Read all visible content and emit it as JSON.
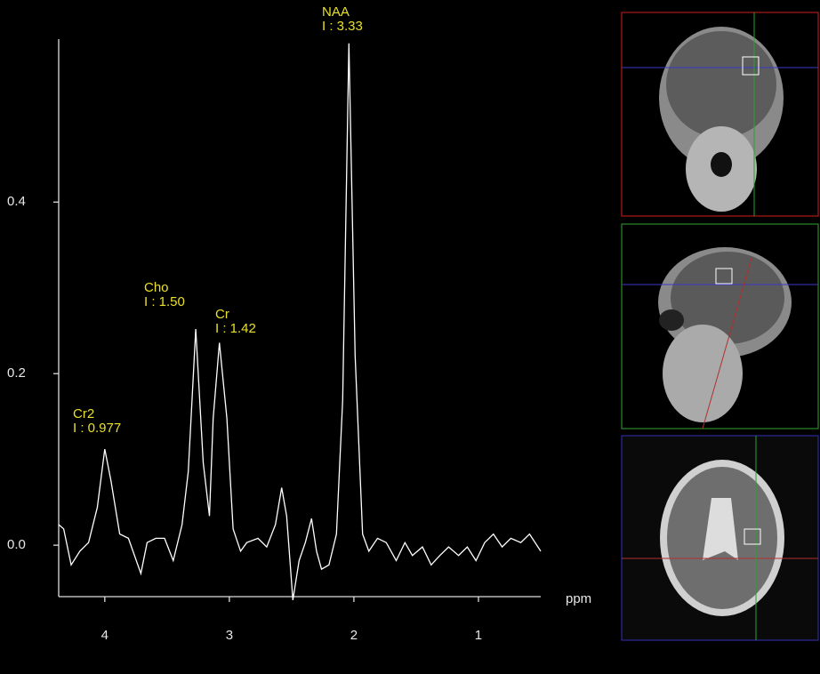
{
  "chart_data": {
    "type": "line",
    "xlabel": "ppm",
    "xlim": [
      4.37,
      0.5
    ],
    "xticks": [
      4,
      3,
      2,
      1
    ],
    "ylim": [
      -0.06,
      0.59
    ],
    "yticks": [
      {
        "value": 0,
        "label": "0.0"
      },
      0.2,
      0.4
    ],
    "series": [
      {
        "color": "#ffffff",
        "x": [
          4.37,
          4.33,
          4.27,
          4.2,
          4.13,
          4.06,
          4.0,
          3.95,
          3.88,
          3.81,
          3.71,
          3.66,
          3.59,
          3.52,
          3.45,
          3.38,
          3.33,
          3.27,
          3.21,
          3.16,
          3.13,
          3.08,
          3.02,
          2.97,
          2.91,
          2.86,
          2.77,
          2.7,
          2.63,
          2.58,
          2.54,
          2.49,
          2.44,
          2.39,
          2.34,
          2.3,
          2.26,
          2.2,
          2.14,
          2.09,
          2.04,
          1.99,
          1.93,
          1.88,
          1.81,
          1.74,
          1.66,
          1.59,
          1.53,
          1.45,
          1.38,
          1.31,
          1.24,
          1.16,
          1.09,
          1.02,
          0.95,
          0.88,
          0.81,
          0.74,
          0.66,
          0.59,
          0.5
        ],
        "values": [
          0.024,
          0.019,
          -0.023,
          -0.007,
          0.003,
          0.044,
          0.112,
          0.075,
          0.013,
          0.008,
          -0.033,
          0.003,
          0.008,
          0.008,
          -0.018,
          0.024,
          0.086,
          0.252,
          0.096,
          0.034,
          0.148,
          0.236,
          0.148,
          0.019,
          -0.007,
          0.003,
          0.008,
          -0.002,
          0.024,
          0.067,
          0.034,
          -0.064,
          -0.018,
          0.003,
          0.031,
          -0.007,
          -0.028,
          -0.023,
          0.013,
          0.169,
          0.585,
          0.221,
          0.013,
          -0.007,
          0.008,
          0.003,
          -0.018,
          0.003,
          -0.012,
          -0.002,
          -0.023,
          -0.012,
          -0.002,
          -0.012,
          -0.002,
          -0.018,
          0.003,
          0.013,
          -0.002,
          0.008,
          0.003,
          0.013,
          -0.007
        ]
      }
    ],
    "annotations": [
      {
        "name": "NAA",
        "text": "I : 3.33"
      },
      {
        "name": "Cho",
        "text": "I : 1.50"
      },
      {
        "name": "Cr",
        "text": "I : 1.42"
      },
      {
        "name": "Cr2",
        "text": "I : 0.977"
      }
    ]
  }
}
